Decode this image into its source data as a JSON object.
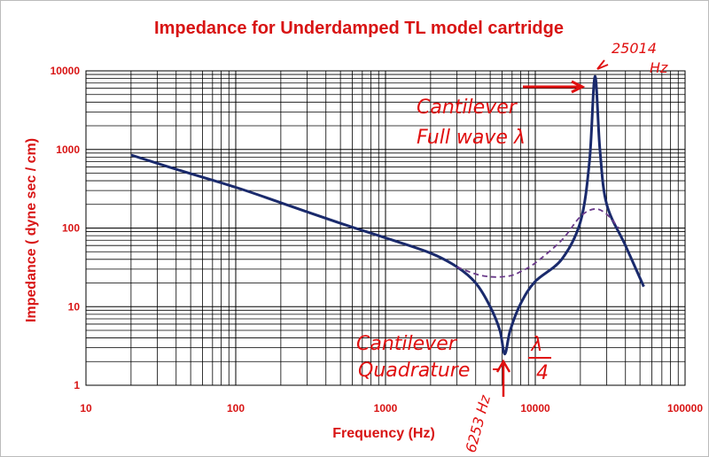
{
  "chart_data": {
    "type": "line",
    "title": "Impedance for Underdamped TL model cartridge",
    "xlabel": "Frequency (Hz)",
    "ylabel": "Impedance ( dyne sec / cm)",
    "x_scale": "log",
    "y_scale": "log",
    "xlim": [
      10,
      100000
    ],
    "ylim": [
      1,
      10000
    ],
    "x_ticks": [
      "10",
      "100",
      "1000",
      "10000",
      "100000"
    ],
    "y_ticks": [
      "1",
      "10",
      "100",
      "1000",
      "10000"
    ],
    "grid": true,
    "series": [
      {
        "color": "#1a2a6c",
        "style": "solid",
        "points": [
          [
            20,
            850
          ],
          [
            40,
            560
          ],
          [
            100,
            330
          ],
          [
            200,
            210
          ],
          [
            500,
            115
          ],
          [
            1000,
            75
          ],
          [
            2000,
            48
          ],
          [
            3000,
            32
          ],
          [
            4000,
            20
          ],
          [
            5000,
            10
          ],
          [
            5800,
            5
          ],
          [
            6253,
            2.5
          ],
          [
            6800,
            5
          ],
          [
            8000,
            11
          ],
          [
            10000,
            21
          ],
          [
            15000,
            40
          ],
          [
            20000,
            120
          ],
          [
            23000,
            700
          ],
          [
            25014,
            8500
          ],
          [
            27000,
            1000
          ],
          [
            30000,
            200
          ],
          [
            40000,
            60
          ],
          [
            53000,
            18
          ]
        ]
      },
      {
        "color": "#6a3a8a",
        "style": "dashed",
        "points": [
          [
            3000,
            32
          ],
          [
            4000,
            26
          ],
          [
            5000,
            24
          ],
          [
            6000,
            24
          ],
          [
            7000,
            25
          ],
          [
            8000,
            28
          ],
          [
            10000,
            36
          ],
          [
            15000,
            70
          ],
          [
            20000,
            140
          ],
          [
            25000,
            175
          ],
          [
            30000,
            150
          ],
          [
            36000,
            100
          ]
        ]
      }
    ],
    "annotations": {
      "peak_freq": "25014",
      "peak_unit": "Hz",
      "cantilever_top": "Cantilever",
      "full_wave": "Full wave λ",
      "cantilever_bottom": "Cantilever",
      "quadrature": "Quadrature",
      "fraction_num": "λ",
      "fraction_den": "4",
      "dip_freq": "6253 Hz"
    }
  }
}
